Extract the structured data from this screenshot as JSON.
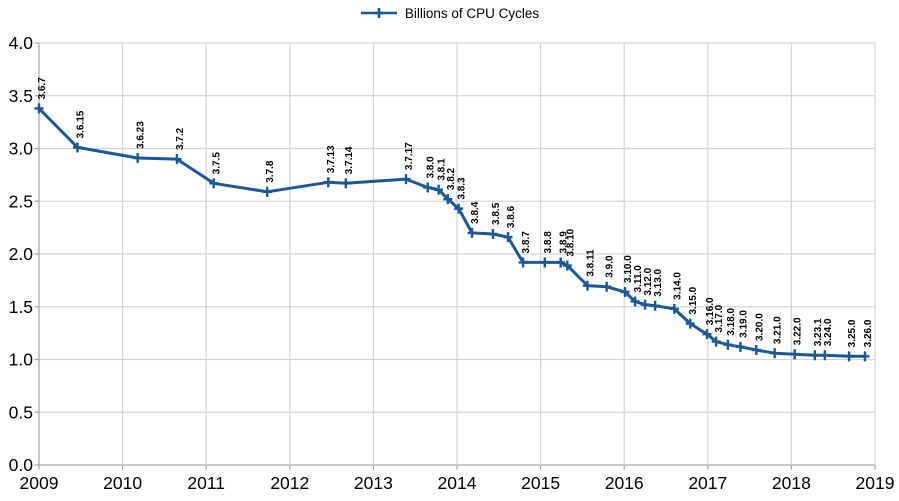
{
  "chart_data": {
    "type": "line",
    "title": "",
    "legend": {
      "position": "top",
      "label": "Billions of CPU Cycles"
    },
    "grid": true,
    "colors": {
      "series": "#1c5796",
      "gridline": "#d4d4d4",
      "axis": "#a6a6a6",
      "text": "#000000"
    },
    "x_axis": {
      "min": 2009,
      "max": 2019,
      "ticks": [
        {
          "value": 2009,
          "label": "2009"
        },
        {
          "value": 2010,
          "label": "2010"
        },
        {
          "value": 2011,
          "label": "2011"
        },
        {
          "value": 2012,
          "label": "2012"
        },
        {
          "value": 2013,
          "label": "2013"
        },
        {
          "value": 2014,
          "label": "2014"
        },
        {
          "value": 2015,
          "label": "2015"
        },
        {
          "value": 2016,
          "label": "2016"
        },
        {
          "value": 2017,
          "label": "2017"
        },
        {
          "value": 2018,
          "label": "2018"
        },
        {
          "value": 2019,
          "label": "2019"
        }
      ]
    },
    "y_axis": {
      "min": 0.0,
      "max": 4.0,
      "step": 0.5,
      "ticks": [
        {
          "value": 4.0,
          "label": "4.0"
        },
        {
          "value": 3.5,
          "label": "3.5"
        },
        {
          "value": 3.0,
          "label": "3.0"
        },
        {
          "value": 2.5,
          "label": "2.5"
        },
        {
          "value": 2.0,
          "label": "2.0"
        },
        {
          "value": 1.5,
          "label": "1.5"
        },
        {
          "value": 1.0,
          "label": "1.0"
        },
        {
          "value": 0.5,
          "label": "0.5"
        },
        {
          "value": 0.0,
          "label": "0.0"
        }
      ]
    },
    "series": [
      {
        "name": "Billions of CPU Cycles",
        "marker": "plus",
        "points": [
          {
            "label": "3.6.7",
            "x": 2009.0,
            "y": 3.38
          },
          {
            "label": "3.6.15",
            "x": 2009.46,
            "y": 3.01
          },
          {
            "label": "3.6.23",
            "x": 2010.18,
            "y": 2.91
          },
          {
            "label": "3.7.2",
            "x": 2010.65,
            "y": 2.9
          },
          {
            "label": "3.7.5",
            "x": 2011.09,
            "y": 2.67
          },
          {
            "label": "3.7.8",
            "x": 2011.73,
            "y": 2.59
          },
          {
            "label": "3.7.13",
            "x": 2012.46,
            "y": 2.68
          },
          {
            "label": "3.7.14",
            "x": 2012.67,
            "y": 2.67
          },
          {
            "label": "3.7.17",
            "x": 2013.39,
            "y": 2.71
          },
          {
            "label": "3.8.0",
            "x": 2013.65,
            "y": 2.63
          },
          {
            "label": "3.8.1",
            "x": 2013.78,
            "y": 2.61
          },
          {
            "label": "3.8.2",
            "x": 2013.89,
            "y": 2.52
          },
          {
            "label": "3.8.3",
            "x": 2014.02,
            "y": 2.43
          },
          {
            "label": "3.8.4",
            "x": 2014.18,
            "y": 2.2
          },
          {
            "label": "3.8.5",
            "x": 2014.43,
            "y": 2.19
          },
          {
            "label": "3.8.6",
            "x": 2014.61,
            "y": 2.16
          },
          {
            "label": "3.8.7",
            "x": 2014.79,
            "y": 1.92
          },
          {
            "label": "3.8.8",
            "x": 2015.05,
            "y": 1.92
          },
          {
            "label": "3.8.9",
            "x": 2015.24,
            "y": 1.92
          },
          {
            "label": "3.8.10",
            "x": 2015.32,
            "y": 1.89
          },
          {
            "label": "3.8.11",
            "x": 2015.56,
            "y": 1.7
          },
          {
            "label": "3.9.0",
            "x": 2015.79,
            "y": 1.69
          },
          {
            "label": "3.10.0",
            "x": 2016.01,
            "y": 1.64
          },
          {
            "label": "3.11.0",
            "x": 2016.13,
            "y": 1.55
          },
          {
            "label": "3.12.0",
            "x": 2016.25,
            "y": 1.52
          },
          {
            "label": "3.13.0",
            "x": 2016.37,
            "y": 1.51
          },
          {
            "label": "3.14.0",
            "x": 2016.6,
            "y": 1.48
          },
          {
            "label": "3.15.0",
            "x": 2016.79,
            "y": 1.34
          },
          {
            "label": "3.16.0",
            "x": 2016.99,
            "y": 1.24
          },
          {
            "label": "3.17.0",
            "x": 2017.1,
            "y": 1.17
          },
          {
            "label": "3.18.0",
            "x": 2017.24,
            "y": 1.14
          },
          {
            "label": "3.19.0",
            "x": 2017.39,
            "y": 1.12
          },
          {
            "label": "3.20.0",
            "x": 2017.58,
            "y": 1.09
          },
          {
            "label": "3.21.0",
            "x": 2017.8,
            "y": 1.06
          },
          {
            "label": "3.22.0",
            "x": 2018.04,
            "y": 1.05
          },
          {
            "label": "3.23.1",
            "x": 2018.28,
            "y": 1.04
          },
          {
            "label": "3.24.0",
            "x": 2018.4,
            "y": 1.04
          },
          {
            "label": "3.25.0",
            "x": 2018.69,
            "y": 1.03
          },
          {
            "label": "3.26.0",
            "x": 2018.88,
            "y": 1.03
          }
        ]
      }
    ]
  }
}
